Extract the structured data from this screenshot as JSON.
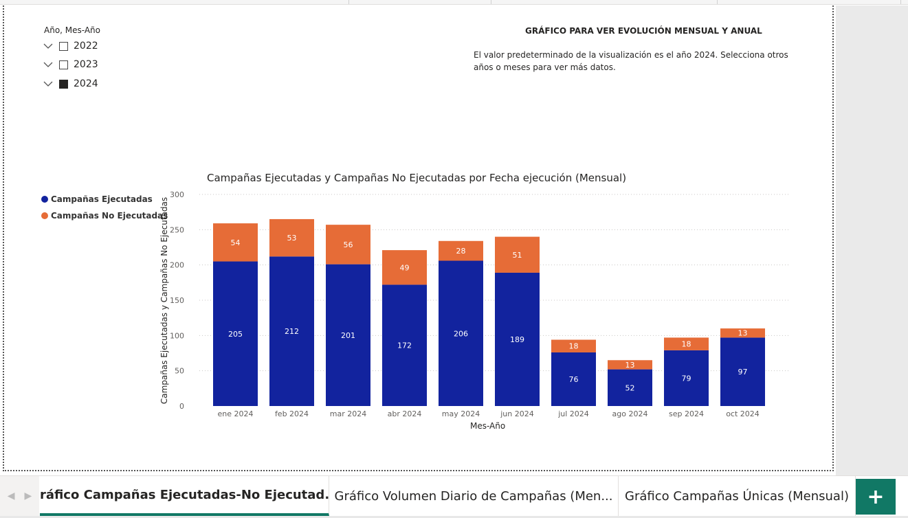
{
  "slicer": {
    "title": "Año, Mes-Año",
    "items": [
      {
        "label": "2022",
        "checked": false
      },
      {
        "label": "2023",
        "checked": false
      },
      {
        "label": "2024",
        "checked": true
      }
    ]
  },
  "info": {
    "title": "GRÁFICO PARA VER EVOLUCIÓN MENSUAL Y ANUAL",
    "text": "El valor predeterminado de la visualización es el año 2024. Selecciona otros años o meses para ver más datos."
  },
  "chart_data": {
    "type": "bar",
    "stacked": true,
    "title": "Campañas Ejecutadas y Campañas No Ejecutadas por Fecha ejecución (Mensual)",
    "xlabel": "Mes-Año",
    "ylabel": "Campañas Ejecutadas y Campañas No Ejecutadas",
    "ylim": [
      0,
      300
    ],
    "yticks": [
      0,
      50,
      100,
      150,
      200,
      250,
      300
    ],
    "grid": true,
    "legend_position": "left",
    "categories": [
      "ene 2024",
      "feb 2024",
      "mar 2024",
      "abr 2024",
      "may 2024",
      "jun 2024",
      "jul 2024",
      "ago 2024",
      "sep 2024",
      "oct 2024"
    ],
    "series": [
      {
        "name": "Campañas Ejecutadas",
        "color": "#12239e",
        "values": [
          205,
          212,
          201,
          172,
          206,
          189,
          76,
          52,
          79,
          97
        ]
      },
      {
        "name": "Campañas No Ejecutadas",
        "color": "#e66c37",
        "values": [
          54,
          53,
          56,
          49,
          28,
          51,
          18,
          13,
          18,
          13
        ]
      }
    ]
  },
  "tabs": {
    "items": [
      {
        "label": "Gráfico Campañas Ejecutadas-No Ejecutad...",
        "active": true
      },
      {
        "label": "Gráfico Volumen Diario de Campañas (Men...",
        "active": false
      },
      {
        "label": "Gráfico Campañas Únicas (Mensual)",
        "active": false
      }
    ],
    "add_label": "+"
  },
  "colors": {
    "accent": "#117865",
    "executed": "#12239e",
    "not_executed": "#e66c37"
  }
}
